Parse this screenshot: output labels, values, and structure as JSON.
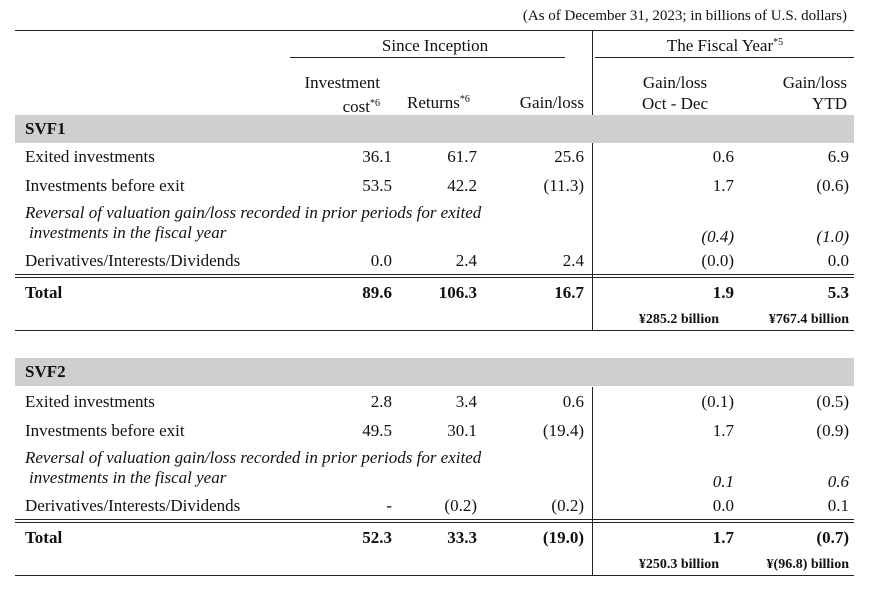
{
  "note": "(As of December 31, 2023; in billions of U.S. dollars)",
  "headers": {
    "since_inception": "Since Inception",
    "fiscal_year": "The Fiscal Year",
    "fiscal_year_sup": "*5",
    "investment_cost_1": "Investment",
    "investment_cost_2": "cost",
    "investment_cost_sup": "*6",
    "returns": "Returns",
    "returns_sup": "*6",
    "gain_loss": "Gain/loss",
    "gain_loss_q_1": "Gain/loss",
    "gain_loss_q_2": "Oct - Dec",
    "gain_loss_ytd_1": "Gain/loss",
    "gain_loss_ytd_2": "YTD"
  },
  "svf1": {
    "title": "SVF1",
    "exited": {
      "label": "Exited investments",
      "cost": "36.1",
      "returns": "61.7",
      "gain": "25.6",
      "q": "0.6",
      "ytd": "6.9"
    },
    "before_exit": {
      "label": "Investments before exit",
      "cost": "53.5",
      "returns": "42.2",
      "gain": "(11.3)",
      "q": "1.7",
      "ytd": "(0.6)"
    },
    "reversal": {
      "label_1": "Reversal of valuation gain/loss recorded in prior periods for exited",
      "label_2": "investments in the fiscal year",
      "q": "(0.4)",
      "ytd": "(1.0)"
    },
    "derivatives": {
      "label": "Derivatives/Interests/Dividends",
      "cost": "0.0",
      "returns": "2.4",
      "gain": "2.4",
      "q": "(0.0)",
      "ytd": "0.0"
    },
    "total": {
      "label": "Total",
      "cost": "89.6",
      "returns": "106.3",
      "gain": "16.7",
      "q": "1.9",
      "ytd": "5.3"
    },
    "yen": {
      "q": "¥285.2 billion",
      "ytd": "¥767.4 billion"
    }
  },
  "svf2": {
    "title": "SVF2",
    "exited": {
      "label": "Exited investments",
      "cost": "2.8",
      "returns": "3.4",
      "gain": "0.6",
      "q": "(0.1)",
      "ytd": "(0.5)"
    },
    "before_exit": {
      "label": "Investments before exit",
      "cost": "49.5",
      "returns": "30.1",
      "gain": "(19.4)",
      "q": "1.7",
      "ytd": "(0.9)"
    },
    "reversal": {
      "label_1": "Reversal of valuation gain/loss recorded in prior periods for exited",
      "label_2": "investments in the fiscal year",
      "q": "0.1",
      "ytd": "0.6"
    },
    "derivatives": {
      "label": "Derivatives/Interests/Dividends",
      "cost": "-",
      "returns": "(0.2)",
      "gain": "(0.2)",
      "q": "0.0",
      "ytd": "0.1"
    },
    "total": {
      "label": "Total",
      "cost": "52.3",
      "returns": "33.3",
      "gain": "(19.0)",
      "q": "1.7",
      "ytd": "(0.7)"
    },
    "yen": {
      "q": "¥250.3 billion",
      "ytd": "¥(96.8) billion"
    }
  }
}
